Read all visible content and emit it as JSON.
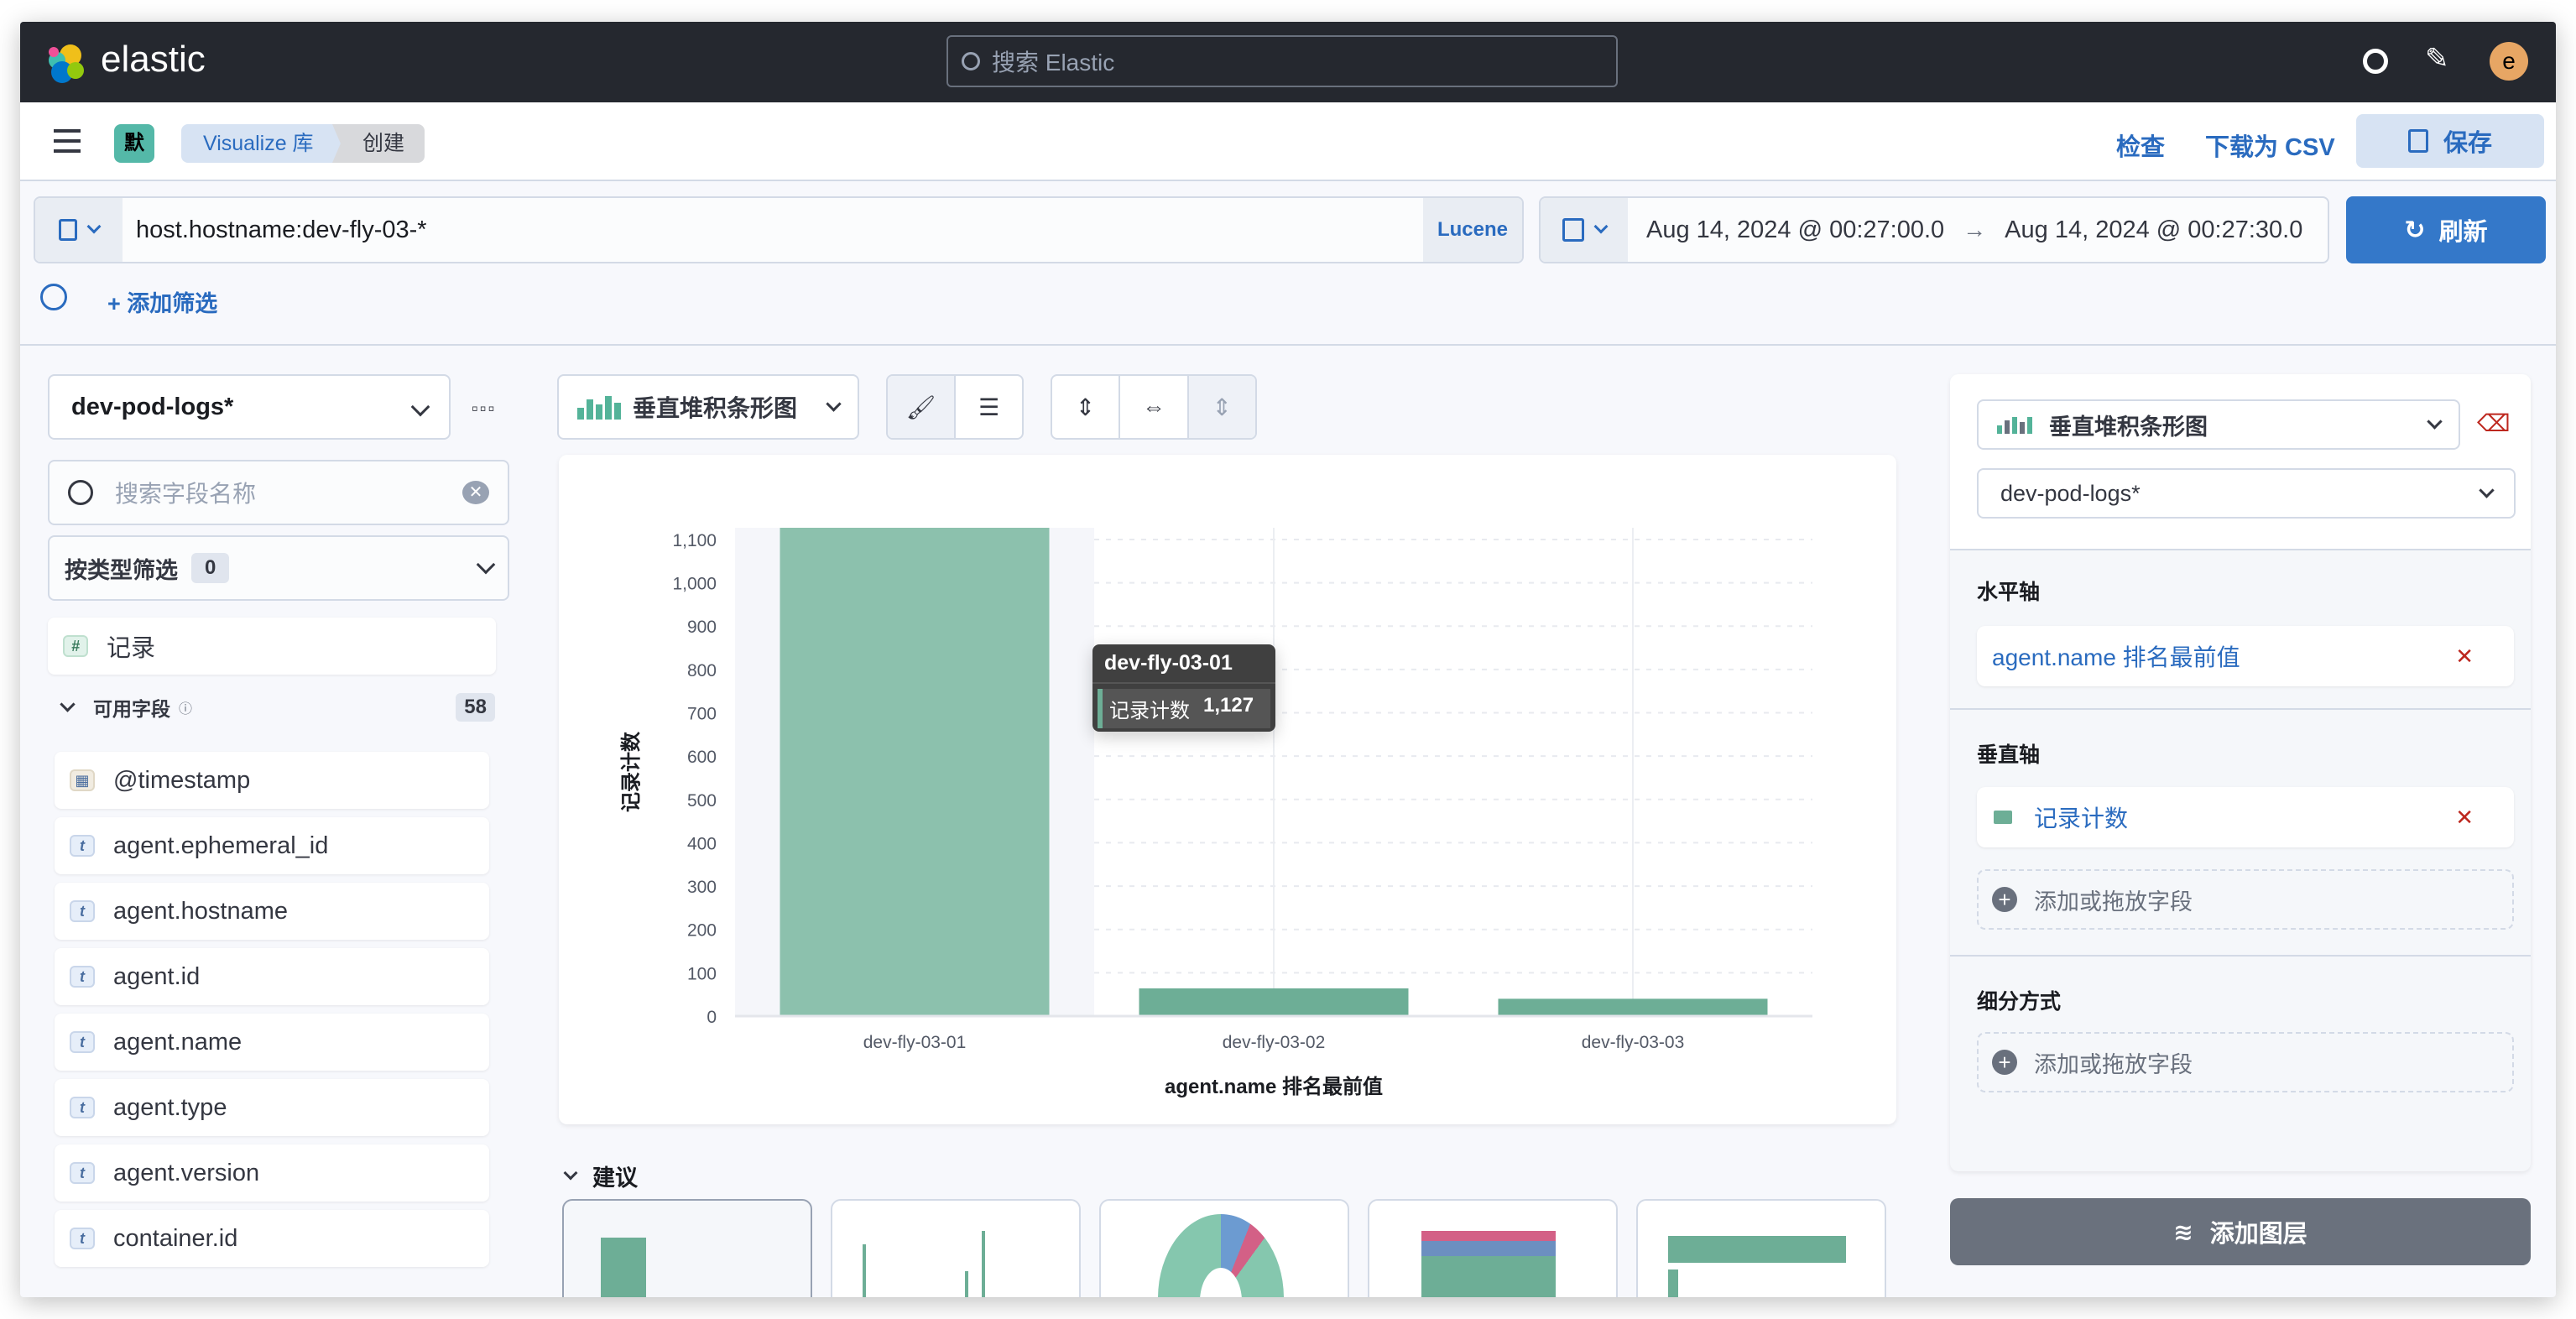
{
  "header": {
    "logo_text": "elastic",
    "search_placeholder": "搜索 Elastic",
    "avatar": "e"
  },
  "nav": {
    "space_badge": "默",
    "breadcrumbs": [
      "Visualize 库",
      "创建"
    ],
    "inspect": "检查",
    "download_csv": "下载为 CSV",
    "save": "保存"
  },
  "query": {
    "value": "host.hostname:dev-fly-03-*",
    "language": "Lucene",
    "time_start": "Aug 14, 2024 @ 00:27:00.0",
    "time_arrow": "→",
    "time_end": "Aug 14, 2024 @ 00:27:30.0",
    "refresh": "刷新",
    "add_filter": "+ 添加筛选"
  },
  "sidebar": {
    "index_pattern": "dev-pod-logs*",
    "search_placeholder": "搜索字段名称",
    "filter_by_type": "按类型筛选",
    "filter_count": "0",
    "records_field": "记录",
    "available_fields_label": "可用字段",
    "available_count": "58",
    "fields": [
      {
        "name": "@timestamp",
        "type": "date"
      },
      {
        "name": "agent.ephemeral_id",
        "type": "t"
      },
      {
        "name": "agent.hostname",
        "type": "t"
      },
      {
        "name": "agent.id",
        "type": "t"
      },
      {
        "name": "agent.name",
        "type": "t"
      },
      {
        "name": "agent.type",
        "type": "t"
      },
      {
        "name": "agent.version",
        "type": "t"
      },
      {
        "name": "container.id",
        "type": "t"
      }
    ]
  },
  "toolbar": {
    "chart_type": "垂直堆积条形图"
  },
  "chart_data": {
    "type": "bar",
    "categories": [
      "dev-fly-03-01",
      "dev-fly-03-02",
      "dev-fly-03-03"
    ],
    "values": [
      1127,
      64,
      40
    ],
    "xlabel": "agent.name 排名最前值",
    "ylabel": "记录计数",
    "ylim": [
      0,
      1127
    ],
    "yticks": [
      0,
      100,
      200,
      300,
      400,
      500,
      600,
      700,
      800,
      900,
      1000,
      1100
    ],
    "ytick_labels": [
      "0",
      "100",
      "200",
      "300",
      "400",
      "500",
      "600",
      "700",
      "800",
      "900",
      "1,000",
      "1,100"
    ],
    "grid": true,
    "color": "#6dae96",
    "highlight_color": "#8cc1ad",
    "tooltip": {
      "title": "dev-fly-03-01",
      "label": "记录计数",
      "value": "1,127"
    }
  },
  "suggestions": {
    "label": "建议"
  },
  "config": {
    "chart_type": "垂直堆积条形图",
    "index_pattern": "dev-pod-logs*",
    "x_axis_label": "水平轴",
    "x_axis_value": "agent.name 排名最前值",
    "y_axis_label": "垂直轴",
    "y_axis_value": "记录计数",
    "add_field": "添加或拖放字段",
    "breakdown_label": "细分方式",
    "add_layer": "添加图层"
  },
  "colors": {
    "accent": "#2a6bbf",
    "bar": "#6dae96",
    "header": "#25282f",
    "danger": "#bd271e"
  }
}
